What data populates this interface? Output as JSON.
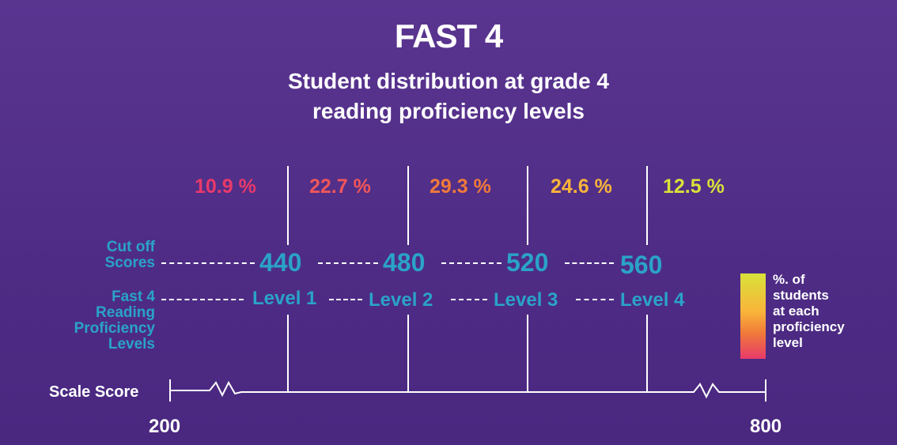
{
  "title": "FAST 4",
  "subtitle_line1": "Student distribution at grade 4",
  "subtitle_line2": "reading proficiency levels",
  "percentages": [
    {
      "label": "10.9 %",
      "color": "#e83a6a"
    },
    {
      "label": "22.7 %",
      "color": "#f0565a"
    },
    {
      "label": "29.3 %",
      "color": "#f07a3a"
    },
    {
      "label": "24.6 %",
      "color": "#f9b43a"
    },
    {
      "label": "12.5 %",
      "color": "#d8e23a"
    }
  ],
  "cutoff_label_line1": "Cut off",
  "cutoff_label_line2": "Scores",
  "cutoffs": [
    "440",
    "480",
    "520",
    "560"
  ],
  "levels_label_line1": "Fast 4",
  "levels_label_line2": "Reading",
  "levels_label_line3": "Proficiency",
  "levels_label_line4": "Levels",
  "levels": [
    "Level 1",
    "Level 2",
    "Level 3",
    "Level 4"
  ],
  "scale_label": "Scale Score",
  "scale_min": "200",
  "scale_max": "800",
  "legend_line1": "%. of",
  "legend_line2": "students",
  "legend_line3": "at each",
  "legend_line4": "proficiency",
  "legend_line5": "level",
  "colors": {
    "text_accent": "#2aa3c8",
    "background": "#52308a"
  }
}
